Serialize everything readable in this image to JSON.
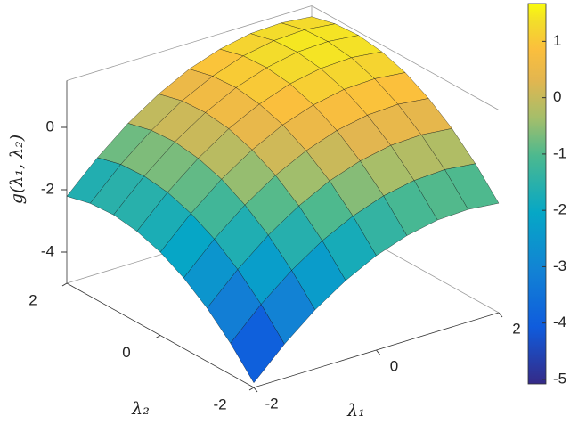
{
  "chart_data": {
    "type": "surface",
    "zlabel": "g(λ₁, λ₂)",
    "xlabel": "λ₁",
    "ylabel": "λ₂",
    "x": [
      -2,
      -1.5,
      -1,
      -0.5,
      0,
      0.5,
      1,
      1.5,
      2
    ],
    "y": [
      -2,
      -1.5,
      -1,
      -0.5,
      0,
      0.5,
      1,
      1.5,
      2
    ],
    "z": [
      [
        -4.85,
        -3.91,
        -3.11,
        -2.47,
        -1.97,
        -1.63,
        -1.43,
        -1.39,
        -1.49
      ],
      [
        -4.0,
        -3.05,
        -2.26,
        -1.61,
        -1.12,
        -0.77,
        -0.58,
        -0.53,
        -0.64
      ],
      [
        -3.29,
        -2.35,
        -1.55,
        -0.91,
        -0.41,
        -0.07,
        0.13,
        0.17,
        0.07
      ],
      [
        -2.74,
        -1.79,
        -1.0,
        -0.35,
        0.14,
        0.49,
        0.68,
        0.73,
        0.62
      ],
      [
        -2.33,
        -1.39,
        -0.59,
        0.05,
        0.55,
        0.89,
        1.09,
        1.13,
        1.03
      ],
      [
        -2.08,
        -1.13,
        -0.34,
        0.31,
        0.8,
        1.15,
        1.34,
        1.39,
        1.28
      ],
      [
        -1.97,
        -1.03,
        -0.23,
        0.41,
        0.91,
        1.25,
        1.45,
        1.49,
        1.39
      ],
      [
        -2.02,
        -1.07,
        -0.28,
        0.37,
        0.86,
        1.21,
        1.4,
        1.45,
        1.34
      ],
      [
        -2.21,
        -1.27,
        -0.47,
        0.17,
        0.67,
        1.01,
        1.21,
        1.25,
        1.15
      ]
    ],
    "xlim": [
      -2,
      2
    ],
    "ylim": [
      -2,
      2
    ],
    "zlim": [
      -5,
      1.5
    ],
    "xticks": [
      -2,
      0,
      2
    ],
    "yticks": [
      -2,
      0,
      2
    ],
    "zticks": [
      -4,
      -2,
      0
    ],
    "clim": [
      -5.08,
      1.67
    ],
    "cticks": [
      -5,
      -4,
      -3,
      -2,
      -1,
      0,
      1
    ],
    "colormap": "parula"
  }
}
